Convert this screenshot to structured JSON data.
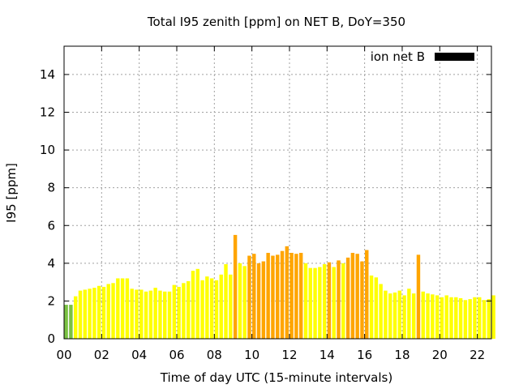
{
  "chart_data": {
    "type": "bar",
    "title": "Total I95 zenith [ppm] on NET B, DoY=350",
    "xlabel": "Time of day UTC (15-minute intervals)",
    "ylabel": "I95 [ppm]",
    "xlim": [
      0,
      22.75
    ],
    "ylim": [
      0,
      15.5
    ],
    "grid": true,
    "legend_position": "top-right",
    "x_ticks": [
      "00",
      "02",
      "04",
      "06",
      "08",
      "10",
      "12",
      "14",
      "16",
      "18",
      "20",
      "22"
    ],
    "y_ticks": [
      "0",
      "2",
      "4",
      "6",
      "8",
      "10",
      "12",
      "14"
    ],
    "legend": [
      {
        "name": "ion net B",
        "color": "#000000"
      }
    ],
    "colors": {
      "green": "#7ac143",
      "yellow": "#ffff00",
      "orange": "#ffa500"
    },
    "series": [
      {
        "name": "ion net B",
        "x": [
          0.0,
          0.25,
          0.5,
          0.75,
          1.0,
          1.25,
          1.5,
          1.75,
          2.0,
          2.25,
          2.5,
          2.75,
          3.0,
          3.25,
          3.5,
          3.75,
          4.0,
          4.25,
          4.5,
          4.75,
          5.0,
          5.25,
          5.5,
          5.75,
          6.0,
          6.25,
          6.5,
          6.75,
          7.0,
          7.25,
          7.5,
          7.75,
          8.0,
          8.25,
          8.5,
          8.75,
          9.0,
          9.25,
          9.5,
          9.75,
          10.0,
          10.25,
          10.5,
          10.75,
          11.0,
          11.25,
          11.5,
          11.75,
          12.0,
          12.25,
          12.5,
          12.75,
          13.0,
          13.25,
          13.5,
          13.75,
          14.0,
          14.25,
          14.5,
          14.75,
          15.0,
          15.25,
          15.5,
          15.75,
          16.0,
          16.25,
          16.5,
          16.75,
          17.0,
          17.25,
          17.5,
          17.75,
          18.0,
          18.25,
          18.5,
          18.75,
          19.0,
          19.25,
          19.5,
          19.75,
          20.0,
          20.25,
          20.5,
          20.75,
          21.0,
          21.25,
          21.5,
          21.75,
          22.0,
          22.25,
          22.5,
          22.75
        ],
        "values": [
          1.8,
          1.8,
          2.25,
          2.55,
          2.6,
          2.65,
          2.7,
          2.8,
          2.75,
          2.9,
          2.95,
          3.2,
          3.2,
          3.2,
          2.65,
          2.6,
          2.6,
          2.5,
          2.55,
          2.7,
          2.55,
          2.5,
          2.5,
          2.85,
          2.75,
          2.95,
          3.05,
          3.6,
          3.7,
          3.1,
          3.3,
          3.2,
          3.1,
          3.4,
          3.95,
          3.4,
          5.5,
          4.0,
          3.85,
          4.4,
          4.5,
          4.0,
          4.1,
          4.55,
          4.4,
          4.45,
          4.65,
          4.9,
          4.55,
          4.5,
          4.55,
          4.0,
          3.75,
          3.75,
          3.8,
          3.95,
          4.05,
          3.8,
          4.15,
          4.0,
          4.3,
          4.55,
          4.5,
          4.1,
          4.7,
          3.35,
          3.25,
          2.9,
          2.55,
          2.4,
          2.45,
          2.55,
          2.3,
          2.65,
          2.4,
          4.45,
          2.5,
          2.4,
          2.35,
          2.3,
          2.2,
          2.3,
          2.2,
          2.2,
          2.15,
          2.05,
          2.1,
          2.2,
          2.2,
          2.05,
          2.1,
          2.3
        ],
        "colors": [
          "green",
          "green",
          "yellow",
          "yellow",
          "yellow",
          "yellow",
          "yellow",
          "yellow",
          "yellow",
          "yellow",
          "yellow",
          "yellow",
          "yellow",
          "yellow",
          "yellow",
          "yellow",
          "yellow",
          "yellow",
          "yellow",
          "yellow",
          "yellow",
          "yellow",
          "yellow",
          "yellow",
          "yellow",
          "yellow",
          "yellow",
          "yellow",
          "yellow",
          "yellow",
          "yellow",
          "yellow",
          "yellow",
          "yellow",
          "yellow",
          "yellow",
          "orange",
          "yellow",
          "yellow",
          "orange",
          "orange",
          "orange",
          "orange",
          "orange",
          "orange",
          "orange",
          "orange",
          "orange",
          "orange",
          "orange",
          "orange",
          "yellow",
          "yellow",
          "yellow",
          "yellow",
          "yellow",
          "orange",
          "yellow",
          "orange",
          "yellow",
          "orange",
          "orange",
          "orange",
          "orange",
          "orange",
          "yellow",
          "yellow",
          "yellow",
          "yellow",
          "yellow",
          "yellow",
          "yellow",
          "yellow",
          "yellow",
          "yellow",
          "orange",
          "yellow",
          "yellow",
          "yellow",
          "yellow",
          "yellow",
          "yellow",
          "yellow",
          "yellow",
          "yellow",
          "yellow",
          "yellow",
          "yellow",
          "yellow",
          "yellow",
          "yellow",
          "yellow"
        ]
      }
    ]
  }
}
